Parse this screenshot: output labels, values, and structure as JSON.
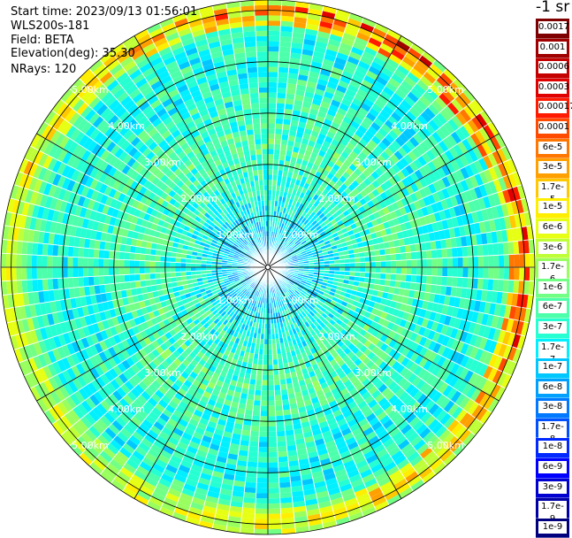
{
  "info": {
    "start_time": "Start time: 2023/09/13 01:56:01",
    "device": "WLS200s-181",
    "field": "Field: BETA",
    "elevation": "Elevation(deg): 35.30",
    "nrays": "NRays: 120"
  },
  "colorbar": {
    "unit_label": "-1 sr",
    "tick_labels": [
      "0.0017",
      "0.001",
      "0.0006",
      "0.0003",
      "0.00017",
      "0.0001",
      "6e-5",
      "3e-5",
      "1.7e-5",
      "1e-5",
      "6e-6",
      "3e-6",
      "1.7e-6",
      "1e-6",
      "6e-7",
      "3e-7",
      "1.7e-7",
      "1e-7",
      "6e-8",
      "3e-8",
      "1.7e-8",
      "1e-8",
      "6e-9",
      "3e-9",
      "1.7e-9",
      "1e-9"
    ],
    "colors": [
      "#7f0000",
      "#a00000",
      "#c40000",
      "#e00000",
      "#ff1a00",
      "#ff4a00",
      "#ff7600",
      "#ffa000",
      "#ffc800",
      "#ffee00",
      "#e6ff12",
      "#bfff38",
      "#98ff5f",
      "#72ff85",
      "#4cffab",
      "#26ffd1",
      "#00f0ff",
      "#00c8ff",
      "#00a0ff",
      "#0078ff",
      "#0050ff",
      "#0028ff",
      "#0000ff",
      "#0000d0",
      "#0000a6",
      "#00007f"
    ]
  },
  "chart_data": {
    "type": "heatmap",
    "projection": "polar (PPI scan)",
    "field": "BETA",
    "nrays": 120,
    "elevation_deg": 35.3,
    "range_rings_km": [
      1,
      2,
      3,
      4,
      5
    ],
    "range_ring_labels": [
      "1.00km",
      "2.00km",
      "3.00km",
      "4.00km",
      "5.00km"
    ],
    "max_range_km": 5.2,
    "azimuth_grid_deg": 30,
    "colormap": "jet",
    "color_scale": "log",
    "value_range": [
      1e-09,
      0.0017
    ],
    "value_unit": "-1 sr",
    "typical_values_by_range_km": [
      {
        "range_km": 0.5,
        "beta": 1e-07
      },
      {
        "range_km": 1.5,
        "beta": 3e-07
      },
      {
        "range_km": 2.5,
        "beta": 6e-07
      },
      {
        "range_km": 3.5,
        "beta": 3e-07
      },
      {
        "range_km": 4.5,
        "beta": 3e-07
      },
      {
        "range_km": 5.0,
        "beta": 3e-06
      }
    ]
  }
}
